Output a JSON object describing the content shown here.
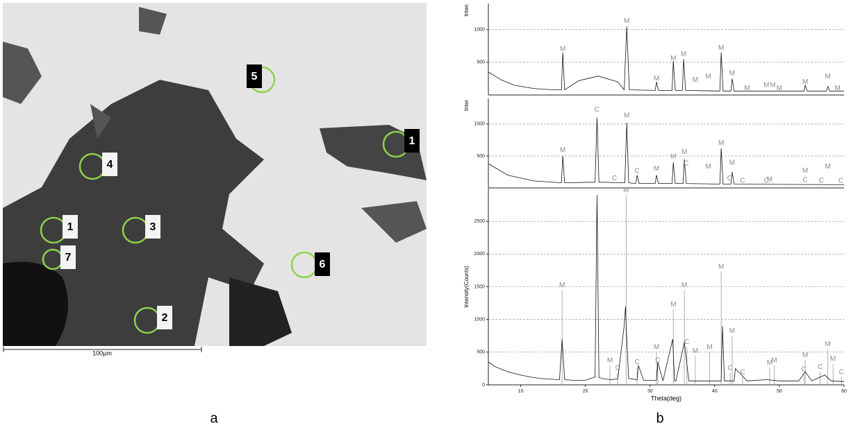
{
  "figure": {
    "panel_labels": [
      "a",
      "b"
    ],
    "scale_bar": "100µm",
    "region_labels": [
      "5",
      "1",
      "4",
      "1",
      "3",
      "7",
      "6",
      "2"
    ]
  },
  "chart_data": [
    {
      "type": "line",
      "ylabel": "Inten",
      "xlim": [
        5,
        60
      ],
      "ylim": [
        0,
        1400
      ],
      "yticks": [
        500,
        1000
      ],
      "grid": true,
      "color": "#111111",
      "x": [
        5,
        7,
        9,
        12,
        15,
        16.3,
        16.5,
        16.8,
        19,
        22,
        25,
        26,
        26.4,
        26.8,
        30.8,
        31,
        31.3,
        33.4,
        33.6,
        33.9,
        35,
        35.2,
        35.5,
        40.8,
        41,
        41.3,
        42.5,
        42.7,
        43,
        53.8,
        54,
        54.3,
        57.3,
        57.5,
        57.8,
        60
      ],
      "values": [
        350,
        230,
        150,
        100,
        80,
        80,
        650,
        80,
        220,
        290,
        200,
        80,
        1050,
        80,
        70,
        200,
        70,
        70,
        520,
        70,
        70,
        550,
        70,
        60,
        650,
        60,
        60,
        250,
        60,
        60,
        150,
        60,
        60,
        130,
        60,
        60
      ],
      "annotations": [
        {
          "text": "M",
          "x": 16.5,
          "y": 700
        },
        {
          "text": "M",
          "x": 26.4,
          "y": 1130
        },
        {
          "text": "M",
          "x": 31,
          "y": 250
        },
        {
          "text": "M",
          "x": 33.6,
          "y": 560
        },
        {
          "text": "M",
          "x": 35.2,
          "y": 620
        },
        {
          "text": "M",
          "x": 37,
          "y": 230
        },
        {
          "text": "M",
          "x": 39,
          "y": 280
        },
        {
          "text": "M",
          "x": 41,
          "y": 720
        },
        {
          "text": "M",
          "x": 42.7,
          "y": 330
        },
        {
          "text": "M",
          "x": 45,
          "y": 100
        },
        {
          "text": "M",
          "x": 48,
          "y": 150
        },
        {
          "text": "M",
          "x": 49,
          "y": 150
        },
        {
          "text": "M",
          "x": 50,
          "y": 100
        },
        {
          "text": "M",
          "x": 54,
          "y": 200
        },
        {
          "text": "M",
          "x": 57.5,
          "y": 280
        },
        {
          "text": "M",
          "x": 59,
          "y": 100
        }
      ]
    },
    {
      "type": "line",
      "ylabel": "Inter",
      "xlim": [
        5,
        60
      ],
      "ylim": [
        0,
        1400
      ],
      "yticks": [
        500,
        1000
      ],
      "grid": true,
      "color": "#111111",
      "x": [
        5,
        8,
        12,
        16.3,
        16.5,
        16.8,
        21.5,
        21.8,
        22.1,
        26.1,
        26.4,
        26.7,
        27.8,
        28,
        28.3,
        30.8,
        31,
        31.3,
        33.4,
        33.6,
        33.9,
        35.1,
        35.3,
        35.6,
        40.8,
        41,
        41.3,
        42.5,
        42.7,
        43,
        60
      ],
      "values": [
        380,
        200,
        110,
        80,
        500,
        80,
        90,
        1100,
        90,
        80,
        1020,
        80,
        70,
        200,
        70,
        70,
        200,
        70,
        70,
        400,
        70,
        70,
        450,
        70,
        60,
        620,
        60,
        60,
        250,
        60,
        50
      ],
      "annotations": [
        {
          "text": "M",
          "x": 16.5,
          "y": 590
        },
        {
          "text": "C",
          "x": 21.8,
          "y": 1220
        },
        {
          "text": "M",
          "x": 26.4,
          "y": 1130
        },
        {
          "text": "C",
          "x": 24.5,
          "y": 150
        },
        {
          "text": "C",
          "x": 28,
          "y": 260
        },
        {
          "text": "M",
          "x": 31,
          "y": 300
        },
        {
          "text": "M",
          "x": 33.6,
          "y": 490
        },
        {
          "text": "M",
          "x": 35.3,
          "y": 560
        },
        {
          "text": "C",
          "x": 35.6,
          "y": 380
        },
        {
          "text": "M",
          "x": 39,
          "y": 330
        },
        {
          "text": "M",
          "x": 41,
          "y": 700
        },
        {
          "text": "M",
          "x": 42.7,
          "y": 390
        },
        {
          "text": "C",
          "x": 42.3,
          "y": 150
        },
        {
          "text": "C",
          "x": 44.3,
          "y": 110
        },
        {
          "text": "C",
          "x": 48,
          "y": 110
        },
        {
          "text": "M",
          "x": 48.5,
          "y": 130
        },
        {
          "text": "C",
          "x": 54,
          "y": 120
        },
        {
          "text": "M",
          "x": 54,
          "y": 270
        },
        {
          "text": "C",
          "x": 56.5,
          "y": 110
        },
        {
          "text": "M",
          "x": 57.5,
          "y": 330
        },
        {
          "text": "C",
          "x": 59.5,
          "y": 110
        }
      ]
    },
    {
      "type": "line",
      "xlabel": "Theta(deg)",
      "ylabel": "Intensity(Counts)",
      "xlim": [
        5,
        60
      ],
      "ylim": [
        0,
        3000
      ],
      "xticks": [
        10,
        20,
        30,
        40,
        50,
        60
      ],
      "yticks": [
        0,
        500,
        1000,
        1500,
        2000,
        2500
      ],
      "grid": true,
      "color": "#111111",
      "x": [
        5,
        6,
        8,
        10,
        12,
        14,
        16,
        16.4,
        16.8,
        18,
        20,
        21.5,
        21.8,
        22.1,
        23,
        24,
        25,
        26,
        26.2,
        26.4,
        26.7,
        28,
        28.2,
        29,
        31,
        31.2,
        32,
        33.5,
        33.8,
        34,
        35.3,
        35.6,
        36,
        37,
        39,
        41,
        41.2,
        41.5,
        43,
        43.2,
        45,
        48,
        50,
        53,
        54,
        55,
        57,
        58,
        60
      ],
      "values": [
        350,
        280,
        200,
        150,
        110,
        90,
        80,
        700,
        80,
        70,
        70,
        120,
        2900,
        110,
        90,
        80,
        90,
        900,
        1200,
        700,
        100,
        80,
        300,
        70,
        70,
        350,
        60,
        700,
        60,
        60,
        650,
        400,
        60,
        60,
        60,
        60,
        900,
        60,
        60,
        250,
        60,
        80,
        60,
        60,
        200,
        60,
        150,
        60,
        50
      ],
      "reference_peaks": [
        {
          "x": 16.4,
          "y": 1450,
          "label": "M"
        },
        {
          "x": 23.8,
          "y": 300,
          "label": "M"
        },
        {
          "x": 25,
          "y": 180,
          "label": "C"
        },
        {
          "x": 26.3,
          "y": 2900,
          "label": "M"
        },
        {
          "x": 28,
          "y": 270,
          "label": "C"
        },
        {
          "x": 31,
          "y": 500,
          "label": "M"
        },
        {
          "x": 31.2,
          "y": 300,
          "label": "C"
        },
        {
          "x": 33.6,
          "y": 1150,
          "label": "M"
        },
        {
          "x": 35.3,
          "y": 1450,
          "label": "M"
        },
        {
          "x": 35.7,
          "y": 580,
          "label": "C"
        },
        {
          "x": 37,
          "y": 440,
          "label": "M"
        },
        {
          "x": 39.2,
          "y": 500,
          "label": "M"
        },
        {
          "x": 41,
          "y": 1730,
          "label": "M"
        },
        {
          "x": 42.4,
          "y": 180,
          "label": "C"
        },
        {
          "x": 42.7,
          "y": 750,
          "label": "M"
        },
        {
          "x": 44.3,
          "y": 120,
          "label": "C"
        },
        {
          "x": 48.5,
          "y": 260,
          "label": "M"
        },
        {
          "x": 49.2,
          "y": 300,
          "label": "M"
        },
        {
          "x": 53.8,
          "y": 160,
          "label": "C"
        },
        {
          "x": 54,
          "y": 380,
          "label": "M"
        },
        {
          "x": 56.3,
          "y": 200,
          "label": "C"
        },
        {
          "x": 57.5,
          "y": 550,
          "label": "M"
        },
        {
          "x": 58.3,
          "y": 320,
          "label": "M"
        },
        {
          "x": 59.6,
          "y": 120,
          "label": "C"
        }
      ]
    }
  ]
}
